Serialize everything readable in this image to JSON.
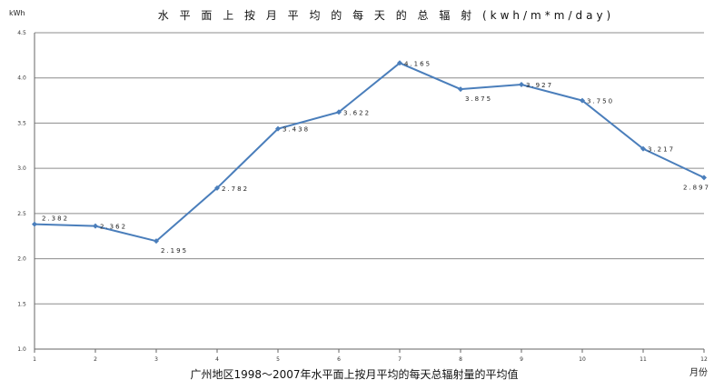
{
  "chart_data": {
    "type": "line",
    "title": "水 平 面 上 按 月 平 均 的 每 天 的 总 辐 射 (kwh/m*m/day)",
    "ylabel": "kWh",
    "xlabel": "月份",
    "caption": "广州地区1998～2007年水平面上按月平均的每天总辐射量的平均值",
    "categories": [
      "1",
      "2",
      "3",
      "4",
      "5",
      "6",
      "7",
      "8",
      "9",
      "10",
      "11",
      "12"
    ],
    "values": [
      2.382,
      2.362,
      2.195,
      2.782,
      3.438,
      3.622,
      4.165,
      3.875,
      3.927,
      3.75,
      3.217,
      2.897
    ],
    "data_labels": [
      "2.382",
      "2.362",
      "2.195",
      "2.782",
      "3.438",
      "3.622",
      "4.165",
      "3.875",
      "3.927",
      "3.750",
      "3.217",
      "2.897"
    ],
    "ylim": [
      1.0,
      4.5
    ],
    "yticks": [
      "1.0",
      "1.5",
      "2.0",
      "2.5",
      "3.0",
      "3.5",
      "4.0",
      "4.5"
    ],
    "grid": true,
    "line_color": "#4a7ebb"
  }
}
